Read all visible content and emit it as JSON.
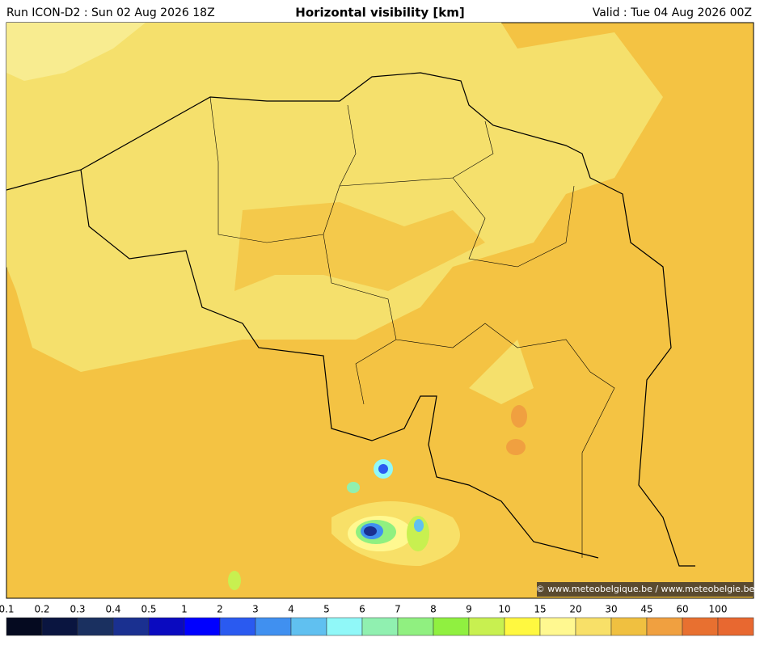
{
  "header": {
    "run": "Run ICON-D2 : Sun 02 Aug 2026 18Z",
    "title": "Horizontal visibility [km]",
    "valid": "Valid : Tue 04 Aug 2026 00Z"
  },
  "credit": "© www.meteobelgique.be / www.meteobelgie.be",
  "colorbar": {
    "ticks": [
      0.1,
      0.2,
      0.3,
      0.4,
      0.5,
      1,
      2,
      3,
      4,
      5,
      6,
      7,
      8,
      9,
      10,
      15,
      20,
      30,
      45,
      60,
      100
    ],
    "colors": [
      "#050a20",
      "#0a1540",
      "#1a3060",
      "#1a3090",
      "#0a0ac0",
      "#0000ff",
      "#2a5af0",
      "#4090f0",
      "#60c0f0",
      "#90f8f8",
      "#90f0b0",
      "#90f080",
      "#90f040",
      "#c8f050",
      "#fff840",
      "#fff890",
      "#f8e068",
      "#f0c040",
      "#f0a040",
      "#e87030",
      "#e86830"
    ]
  }
}
